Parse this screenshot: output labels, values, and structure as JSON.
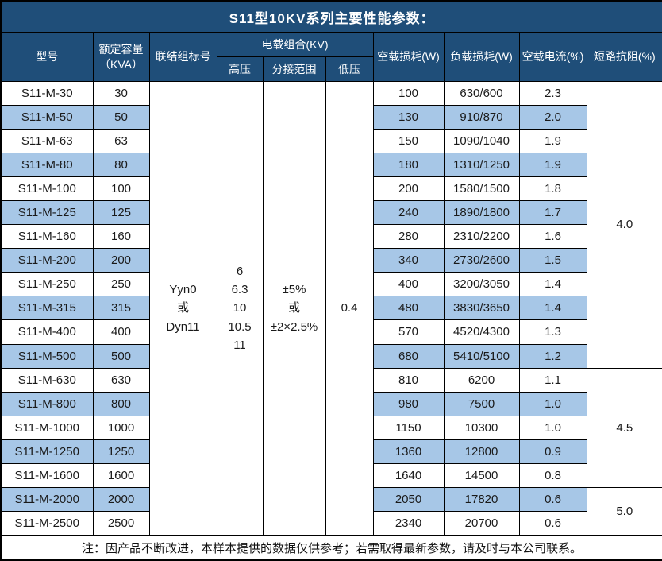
{
  "title": "S11型10KV系列主要性能参数：",
  "colors": {
    "header_bg": "#1F4E79",
    "row_alt": "#A7C7E7",
    "border": "#000000"
  },
  "header": {
    "model": "型号",
    "capacity_line1": "额定容量",
    "capacity_line2": "（KVA）",
    "vector_group": "联结组标号",
    "voltage_combo": "电载组合(KV)",
    "hv": "高压",
    "tap_range": "分接范围",
    "lv": "低压",
    "no_load_loss": "空载损耗(W)",
    "load_loss": "负载损耗(W)",
    "no_load_current": "空载电流(%)",
    "impedance": "短路抗阻(%)"
  },
  "merged": {
    "vector_group_lines": [
      "Yyn0",
      "或",
      "Dyn11"
    ],
    "hv_lines": [
      "6",
      "6.3",
      "10",
      "10.5",
      "11"
    ],
    "tap_lines": [
      "±5%",
      "或",
      "±2×2.5%"
    ],
    "lv": "0.4"
  },
  "impedance_groups": [
    {
      "value": "4.0",
      "rows": 12
    },
    {
      "value": "4.5",
      "rows": 5
    },
    {
      "value": "5.0",
      "rows": 2
    }
  ],
  "rows": [
    {
      "model": "S11-M-30",
      "capacity": "30",
      "no_load_loss": "100",
      "load_loss": "630/600",
      "no_load_current": "2.3"
    },
    {
      "model": "S11-M-50",
      "capacity": "50",
      "no_load_loss": "130",
      "load_loss": "910/870",
      "no_load_current": "2.0"
    },
    {
      "model": "S11-M-63",
      "capacity": "63",
      "no_load_loss": "150",
      "load_loss": "1090/1040",
      "no_load_current": "1.9"
    },
    {
      "model": "S11-M-80",
      "capacity": "80",
      "no_load_loss": "180",
      "load_loss": "1310/1250",
      "no_load_current": "1.9"
    },
    {
      "model": "S11-M-100",
      "capacity": "100",
      "no_load_loss": "200",
      "load_loss": "1580/1500",
      "no_load_current": "1.8"
    },
    {
      "model": "S11-M-125",
      "capacity": "125",
      "no_load_loss": "240",
      "load_loss": "1890/1800",
      "no_load_current": "1.7"
    },
    {
      "model": "S11-M-160",
      "capacity": "160",
      "no_load_loss": "280",
      "load_loss": "2310/2200",
      "no_load_current": "1.6"
    },
    {
      "model": "S11-M-200",
      "capacity": "200",
      "no_load_loss": "340",
      "load_loss": "2730/2600",
      "no_load_current": "1.5"
    },
    {
      "model": "S11-M-250",
      "capacity": "250",
      "no_load_loss": "400",
      "load_loss": "3200/3050",
      "no_load_current": "1.4"
    },
    {
      "model": "S11-M-315",
      "capacity": "315",
      "no_load_loss": "480",
      "load_loss": "3830/3650",
      "no_load_current": "1.4"
    },
    {
      "model": "S11-M-400",
      "capacity": "400",
      "no_load_loss": "570",
      "load_loss": "4520/4300",
      "no_load_current": "1.3"
    },
    {
      "model": "S11-M-500",
      "capacity": "500",
      "no_load_loss": "680",
      "load_loss": "5410/5100",
      "no_load_current": "1.2"
    },
    {
      "model": "S11-M-630",
      "capacity": "630",
      "no_load_loss": "810",
      "load_loss": "6200",
      "no_load_current": "1.1"
    },
    {
      "model": "S11-M-800",
      "capacity": "800",
      "no_load_loss": "980",
      "load_loss": "7500",
      "no_load_current": "1.0"
    },
    {
      "model": "S11-M-1000",
      "capacity": "1000",
      "no_load_loss": "1150",
      "load_loss": "10300",
      "no_load_current": "1.0"
    },
    {
      "model": "S11-M-1250",
      "capacity": "1250",
      "no_load_loss": "1360",
      "load_loss": "12800",
      "no_load_current": "0.9"
    },
    {
      "model": "S11-M-1600",
      "capacity": "1600",
      "no_load_loss": "1640",
      "load_loss": "14500",
      "no_load_current": "0.8"
    },
    {
      "model": "S11-M-2000",
      "capacity": "2000",
      "no_load_loss": "2050",
      "load_loss": "17820",
      "no_load_current": "0.6"
    },
    {
      "model": "S11-M-2500",
      "capacity": "2500",
      "no_load_loss": "2340",
      "load_loss": "20700",
      "no_load_current": "0.6"
    }
  ],
  "footer_note": "注：因产品不断改进，本样本提供的数据仅供参考；若需取得最新参数，请及时与本公司联系。"
}
